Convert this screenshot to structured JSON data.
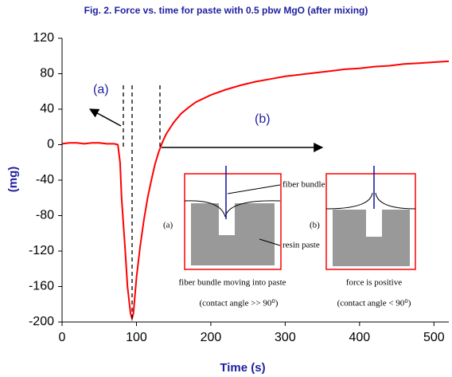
{
  "chart_data": {
    "type": "line",
    "title": "Fig. 2.  Force vs. time for paste with 0.5 pbw MgO (after mixing)",
    "x_label": "Time (s)",
    "y_label": "(mg)",
    "xlim": [
      0,
      520
    ],
    "ylim": [
      -200,
      120
    ],
    "xticks": [
      0,
      100,
      200,
      300,
      400,
      500
    ],
    "yticks": [
      -200,
      -160,
      -120,
      -80,
      -40,
      0,
      40,
      80,
      120
    ],
    "series": [
      {
        "color": "#ff0000",
        "x": [
          0,
          10,
          20,
          30,
          40,
          50,
          60,
          70,
          75,
          78,
          80,
          85,
          88,
          92,
          94,
          96,
          98,
          100,
          105,
          110,
          115,
          120,
          125,
          130,
          135,
          140,
          150,
          160,
          170,
          180,
          200,
          220,
          240,
          260,
          280,
          300,
          320,
          340,
          360,
          380,
          400,
          420,
          440,
          460,
          480,
          500,
          520
        ],
        "values": [
          1,
          2,
          2,
          1,
          2,
          2,
          1,
          1,
          0,
          -20,
          -60,
          -120,
          -160,
          -190,
          -196,
          -190,
          -170,
          -150,
          -115,
          -85,
          -60,
          -40,
          -22,
          -8,
          3,
          12,
          25,
          35,
          42,
          48,
          56,
          62,
          67,
          71,
          74,
          77,
          79,
          81,
          83,
          85,
          86,
          88,
          89,
          91,
          92,
          93,
          94
        ]
      }
    ],
    "annotations": {
      "a": "(a)",
      "b": "(b)",
      "inset_fiber": "fiber bundle",
      "inset_resin": "resin paste",
      "inset_a": "(a)",
      "inset_b": "(b)",
      "caption_a": "fiber bundle moving into paste",
      "angle_a": "(contact angle >> 90⁰)",
      "caption_b": "force is positive",
      "angle_b": "(contact angle < 90⁰)"
    }
  }
}
